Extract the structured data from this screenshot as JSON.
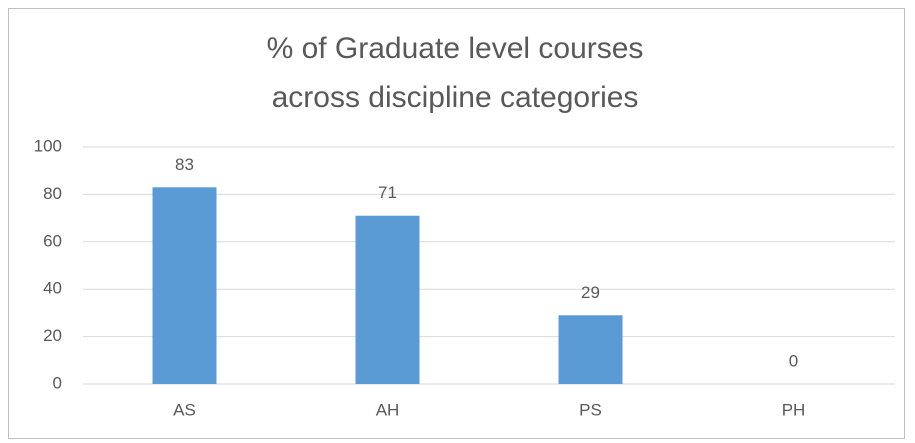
{
  "chart_data": {
    "type": "bar",
    "title": "% of Graduate level courses across discipline categories",
    "categories": [
      "AS",
      "AH",
      "PS",
      "PH"
    ],
    "values": [
      83,
      71,
      29,
      0
    ],
    "color": "#5b9bd5",
    "ylim": [
      0,
      100
    ],
    "yticks": [
      0,
      20,
      40,
      60,
      80,
      100
    ],
    "grid": true,
    "data_labels": true
  }
}
